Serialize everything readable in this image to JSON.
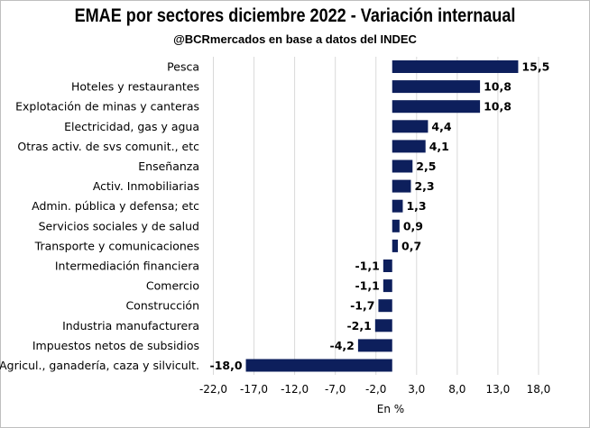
{
  "title": "EMAE por sectores diciembre 2022 - Variación internaual",
  "subtitle": "@BCRmercados en base a datos del INDEC",
  "chart_data": {
    "type": "bar",
    "orientation": "horizontal",
    "title": "EMAE por sectores diciembre 2022 - Variación internaual",
    "subtitle": "@BCRmercados en base a datos del INDEC",
    "xlabel": "En %",
    "ylabel": "",
    "xlim": [
      -22,
      22
    ],
    "xticks": [
      -22,
      -17,
      -12,
      -7,
      -2,
      3,
      8,
      13,
      18
    ],
    "xtick_labels": [
      "-22,0",
      "-17,0",
      "-12,0",
      "-7,0",
      "-2,0",
      "3,0",
      "8,0",
      "13,0",
      "18,0"
    ],
    "grid": "vertical",
    "legend": "none",
    "bar_color": "#0d1f5c",
    "categories": [
      "Pesca",
      "Hoteles y restaurantes",
      "Explotación de minas y canteras",
      "Electricidad, gas y agua",
      "Otras activ. de svs comunit., etc",
      "Enseñanza",
      "Activ. Inmobiliarias",
      "Admin. pública y defensa; etc",
      "Servicios sociales y de salud",
      "Transporte y comunicaciones",
      "Intermediación financiera",
      "Comercio",
      "Construcción",
      "Industria manufacturera",
      "Impuestos netos de subsidios",
      "Agricul., ganadería, caza y silvicult."
    ],
    "values": [
      15.5,
      10.8,
      10.8,
      4.4,
      4.1,
      2.5,
      2.3,
      1.3,
      0.9,
      0.7,
      -1.1,
      -1.1,
      -1.7,
      -2.1,
      -4.2,
      -18.0
    ],
    "value_labels": [
      "15,5",
      "10,8",
      "10,8",
      "4,4",
      "4,1",
      "2,5",
      "2,3",
      "1,3",
      "0,9",
      "0,7",
      "-1,1",
      "-1,1",
      "-1,7",
      "-2,1",
      "-4,2",
      "-18,0"
    ]
  }
}
